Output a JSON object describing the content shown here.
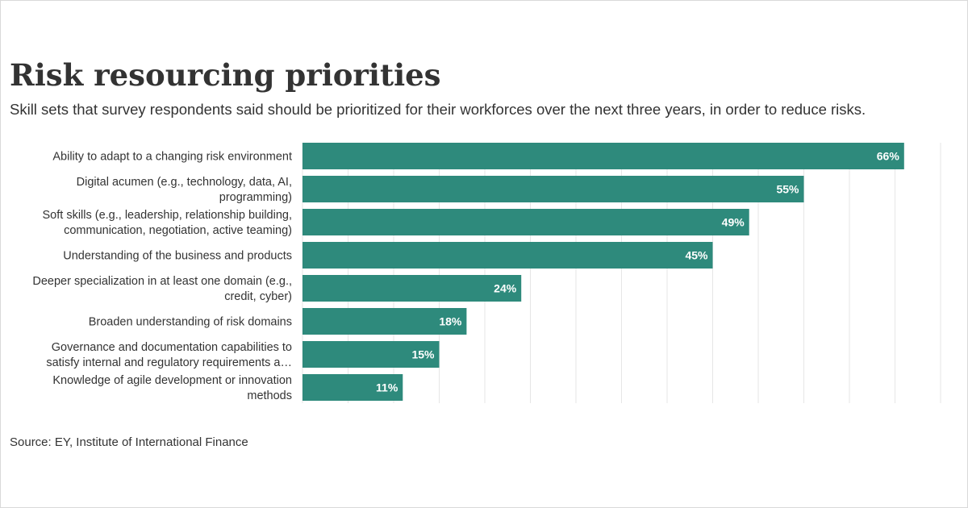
{
  "title": "Risk resourcing priorities",
  "subtitle": "Skill sets that survey respondents said should be prioritized for their workforces over the next three years, in order to reduce risks.",
  "source": "Source: EY, Institute of International Finance",
  "colors": {
    "bar": "#2e8a7c",
    "grid": "#e6e6e6",
    "text": "#333333"
  },
  "chart_data": {
    "type": "bar",
    "orientation": "horizontal",
    "categories": [
      [
        "Ability to adapt to a changing risk environment"
      ],
      [
        "Digital acumen (e.g., technology, data, AI,",
        "programming)"
      ],
      [
        "Soft skills (e.g., leadership, relationship building,",
        "communication, negotiation, active teaming)"
      ],
      [
        "Understanding of the business and products"
      ],
      [
        "Deeper specialization in at least one domain (e.g.,",
        "credit, cyber)"
      ],
      [
        "Broaden understanding of risk domains"
      ],
      [
        "Governance and documentation capabilities to",
        "satisfy internal and regulatory requirements a…"
      ],
      [
        "Knowledge of agile development or innovation",
        "methods"
      ]
    ],
    "values": [
      66,
      55,
      49,
      45,
      24,
      18,
      15,
      11
    ],
    "value_labels": [
      "66%",
      "55%",
      "49%",
      "45%",
      "24%",
      "18%",
      "15%",
      "11%"
    ],
    "xlim": [
      0,
      70
    ],
    "grid": true,
    "legend": "none"
  }
}
